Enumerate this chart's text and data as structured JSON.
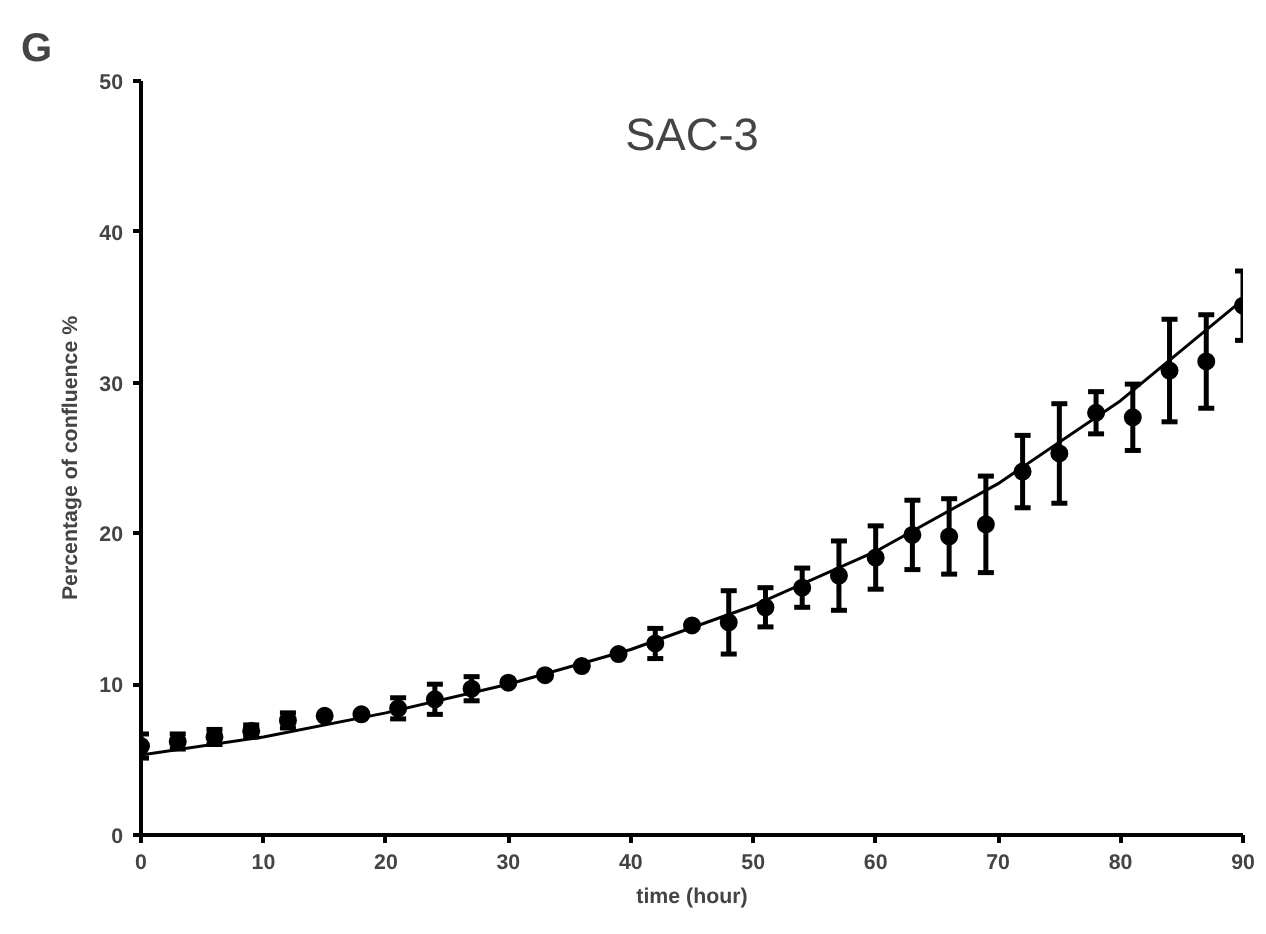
{
  "chart_data": {
    "type": "line",
    "title": "SAC-3",
    "xlabel": "time (hour)",
    "ylabel": "Percentage of confluence %",
    "annotations": [
      "G"
    ],
    "xlim": [
      0,
      90
    ],
    "ylim": [
      0,
      50
    ],
    "xticks": [
      0,
      10,
      20,
      30,
      40,
      50,
      60,
      70,
      80,
      90
    ],
    "yticks": [
      0,
      10,
      20,
      30,
      40,
      50
    ],
    "grid": false,
    "series": [
      {
        "type": "scatter",
        "marker": "circle",
        "color": "#000000",
        "x": [
          0,
          3,
          6,
          9,
          12,
          15,
          18,
          21,
          24,
          27,
          30,
          33,
          36,
          39,
          42,
          45,
          48,
          51,
          54,
          57,
          60,
          63,
          66,
          69,
          72,
          75,
          78,
          81,
          84,
          87,
          90
        ],
        "values": [
          5.9,
          6.2,
          6.5,
          6.9,
          7.6,
          7.9,
          8.0,
          8.4,
          9.0,
          9.7,
          10.1,
          10.6,
          11.2,
          12.0,
          12.7,
          13.9,
          14.1,
          15.1,
          16.4,
          17.2,
          18.4,
          19.9,
          19.8,
          20.6,
          24.1,
          25.3,
          28.0,
          27.7,
          30.8,
          31.4,
          35.1
        ],
        "errors": [
          0.8,
          0.5,
          0.5,
          0.4,
          0.5,
          null,
          null,
          0.7,
          1.0,
          0.8,
          null,
          null,
          null,
          null,
          1.0,
          null,
          2.1,
          1.3,
          1.3,
          2.3,
          2.1,
          2.3,
          2.5,
          3.2,
          2.4,
          3.3,
          1.4,
          2.2,
          3.4,
          3.1,
          2.3
        ]
      },
      {
        "color": "#000000",
        "marker": "none",
        "line_style": "solid",
        "x": [
          0,
          10,
          20,
          30,
          40,
          50,
          60,
          70,
          80,
          90
        ],
        "values": [
          5.3,
          6.5,
          8.1,
          10.0,
          12.3,
          15.2,
          18.8,
          23.3,
          28.8,
          35.5
        ]
      }
    ]
  }
}
